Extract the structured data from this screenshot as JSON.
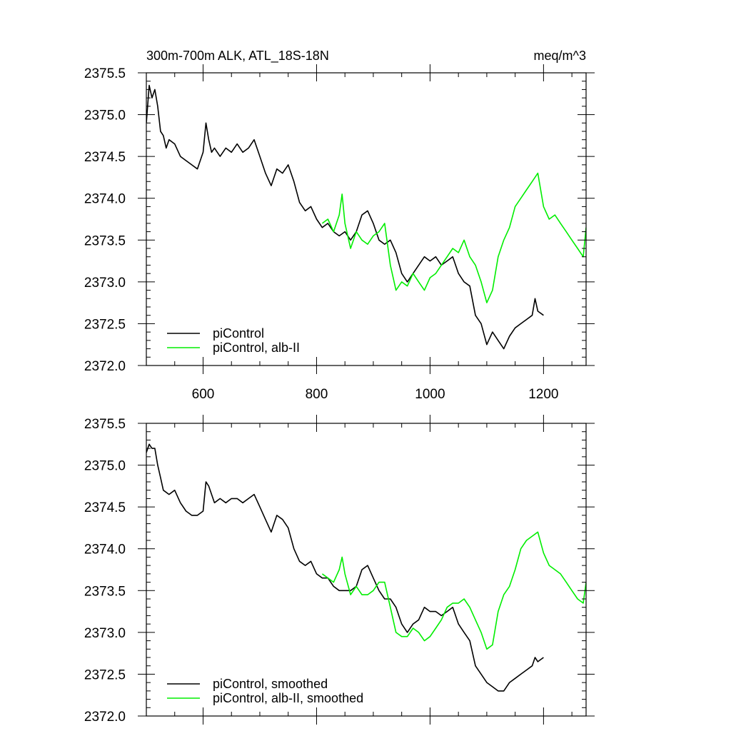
{
  "chart_data": [
    {
      "type": "line",
      "title": "300m-700m ALK, ATL_18S-18N",
      "units": "meq/m^3",
      "xlim": [
        500,
        1275
      ],
      "ylim": [
        2372.0,
        2375.5
      ],
      "x_ticks": [
        600,
        800,
        1000,
        1200
      ],
      "x_tick_labels": [
        "600",
        "800",
        "1000",
        "1200"
      ],
      "y_ticks": [
        2372.0,
        2372.5,
        2373.0,
        2373.5,
        2374.0,
        2374.5,
        2375.0,
        2375.5
      ],
      "y_tick_labels": [
        "2372.0",
        "2372.5",
        "2373.0",
        "2373.5",
        "2374.0",
        "2374.5",
        "2375.0",
        "2375.5"
      ],
      "grid": false,
      "legend_position": "bottom-left",
      "series": [
        {
          "name": "piControl",
          "color": "#000000",
          "x": [
            500,
            505,
            510,
            515,
            520,
            525,
            530,
            535,
            540,
            550,
            560,
            570,
            580,
            590,
            600,
            605,
            610,
            615,
            620,
            630,
            640,
            650,
            660,
            670,
            680,
            690,
            700,
            710,
            720,
            730,
            740,
            750,
            760,
            770,
            780,
            790,
            800,
            810,
            820,
            830,
            840,
            850,
            860,
            870,
            880,
            890,
            900,
            910,
            920,
            930,
            940,
            950,
            960,
            970,
            980,
            990,
            1000,
            1010,
            1020,
            1030,
            1040,
            1050,
            1060,
            1070,
            1080,
            1090,
            1100,
            1110,
            1120,
            1130,
            1140,
            1150,
            1160,
            1170,
            1180,
            1185,
            1190,
            1200
          ],
          "values": [
            2374.9,
            2375.35,
            2375.2,
            2375.3,
            2375.1,
            2374.8,
            2374.75,
            2374.6,
            2374.7,
            2374.65,
            2374.5,
            2374.45,
            2374.4,
            2374.35,
            2374.55,
            2374.9,
            2374.7,
            2374.55,
            2374.6,
            2374.5,
            2374.6,
            2374.55,
            2374.65,
            2374.55,
            2374.6,
            2374.7,
            2374.5,
            2374.3,
            2374.15,
            2374.35,
            2374.3,
            2374.4,
            2374.2,
            2373.95,
            2373.85,
            2373.9,
            2373.75,
            2373.65,
            2373.7,
            2373.6,
            2373.55,
            2373.6,
            2373.5,
            2373.6,
            2373.8,
            2373.85,
            2373.7,
            2373.5,
            2373.45,
            2373.5,
            2373.35,
            2373.1,
            2373.0,
            2373.1,
            2373.2,
            2373.3,
            2373.25,
            2373.3,
            2373.2,
            2373.25,
            2373.3,
            2373.1,
            2373.0,
            2372.95,
            2372.6,
            2372.5,
            2372.25,
            2372.4,
            2372.3,
            2372.2,
            2372.35,
            2372.45,
            2372.5,
            2372.55,
            2372.6,
            2372.8,
            2372.65,
            2372.6
          ]
        },
        {
          "name": "piControl, alb-II",
          "color": "#00ee00",
          "x": [
            810,
            820,
            830,
            840,
            845,
            850,
            860,
            870,
            880,
            890,
            900,
            910,
            920,
            930,
            940,
            950,
            960,
            970,
            980,
            990,
            1000,
            1010,
            1020,
            1030,
            1040,
            1050,
            1060,
            1070,
            1080,
            1090,
            1100,
            1110,
            1120,
            1130,
            1140,
            1150,
            1160,
            1170,
            1180,
            1190,
            1200,
            1210,
            1220,
            1230,
            1240,
            1250,
            1260,
            1270,
            1275
          ],
          "values": [
            2373.7,
            2373.75,
            2373.6,
            2373.8,
            2374.05,
            2373.7,
            2373.4,
            2373.6,
            2373.5,
            2373.45,
            2373.55,
            2373.6,
            2373.7,
            2373.2,
            2372.9,
            2373.0,
            2372.95,
            2373.1,
            2373.0,
            2372.9,
            2373.05,
            2373.1,
            2373.2,
            2373.3,
            2373.4,
            2373.35,
            2373.5,
            2373.3,
            2373.2,
            2373.0,
            2372.75,
            2372.9,
            2373.3,
            2373.5,
            2373.65,
            2373.9,
            2374.0,
            2374.1,
            2374.2,
            2374.3,
            2373.9,
            2373.75,
            2373.8,
            2373.7,
            2373.6,
            2373.5,
            2373.4,
            2373.3,
            2373.65
          ]
        }
      ]
    },
    {
      "type": "line",
      "xlim": [
        500,
        1275
      ],
      "ylim": [
        2372.0,
        2375.5
      ],
      "x_ticks": [
        600,
        800,
        1000,
        1200
      ],
      "y_ticks": [
        2372.0,
        2372.5,
        2373.0,
        2373.5,
        2374.0,
        2374.5,
        2375.0,
        2375.5
      ],
      "y_tick_labels": [
        "2372.0",
        "2372.5",
        "2373.0",
        "2373.5",
        "2374.0",
        "2374.5",
        "2375.0",
        "2375.5"
      ],
      "grid": false,
      "legend_position": "bottom-left",
      "series": [
        {
          "name": "piControl, smoothed",
          "color": "#000000",
          "x": [
            500,
            505,
            510,
            515,
            520,
            525,
            530,
            540,
            550,
            560,
            570,
            580,
            590,
            600,
            605,
            610,
            620,
            630,
            640,
            650,
            660,
            670,
            680,
            690,
            700,
            710,
            720,
            730,
            740,
            750,
            760,
            770,
            780,
            790,
            800,
            810,
            820,
            830,
            840,
            850,
            860,
            870,
            880,
            890,
            900,
            910,
            920,
            930,
            940,
            950,
            960,
            970,
            980,
            990,
            1000,
            1010,
            1020,
            1030,
            1040,
            1050,
            1060,
            1070,
            1080,
            1090,
            1100,
            1110,
            1120,
            1130,
            1140,
            1150,
            1160,
            1170,
            1180,
            1185,
            1190,
            1200
          ],
          "values": [
            2375.15,
            2375.25,
            2375.2,
            2375.2,
            2375.0,
            2374.85,
            2374.7,
            2374.65,
            2374.7,
            2374.55,
            2374.45,
            2374.4,
            2374.4,
            2374.45,
            2374.8,
            2374.75,
            2374.55,
            2374.6,
            2374.55,
            2374.6,
            2374.6,
            2374.55,
            2374.6,
            2374.65,
            2374.5,
            2374.35,
            2374.2,
            2374.4,
            2374.35,
            2374.25,
            2374.0,
            2373.85,
            2373.8,
            2373.85,
            2373.7,
            2373.65,
            2373.65,
            2373.55,
            2373.5,
            2373.5,
            2373.5,
            2373.55,
            2373.75,
            2373.8,
            2373.65,
            2373.5,
            2373.4,
            2373.4,
            2373.3,
            2373.1,
            2373.0,
            2373.1,
            2373.15,
            2373.3,
            2373.25,
            2373.25,
            2373.2,
            2373.25,
            2373.3,
            2373.1,
            2373.0,
            2372.9,
            2372.6,
            2372.5,
            2372.4,
            2372.35,
            2372.3,
            2372.3,
            2372.4,
            2372.45,
            2372.5,
            2372.55,
            2372.6,
            2372.7,
            2372.65,
            2372.7
          ]
        },
        {
          "name": "piControl, alb-II, smoothed",
          "color": "#00ee00",
          "x": [
            810,
            820,
            830,
            840,
            845,
            850,
            860,
            870,
            880,
            890,
            900,
            910,
            920,
            930,
            940,
            950,
            960,
            970,
            980,
            990,
            1000,
            1010,
            1020,
            1030,
            1040,
            1050,
            1060,
            1070,
            1080,
            1090,
            1100,
            1110,
            1120,
            1130,
            1140,
            1150,
            1160,
            1170,
            1180,
            1190,
            1200,
            1210,
            1220,
            1230,
            1240,
            1250,
            1260,
            1270,
            1275
          ],
          "values": [
            2373.7,
            2373.65,
            2373.6,
            2373.75,
            2373.9,
            2373.7,
            2373.45,
            2373.55,
            2373.45,
            2373.45,
            2373.5,
            2373.6,
            2373.6,
            2373.3,
            2373.0,
            2372.95,
            2372.95,
            2373.05,
            2373.0,
            2372.9,
            2372.95,
            2373.05,
            2373.15,
            2373.3,
            2373.35,
            2373.35,
            2373.4,
            2373.3,
            2373.15,
            2373.0,
            2372.8,
            2372.85,
            2373.25,
            2373.45,
            2373.55,
            2373.75,
            2374.0,
            2374.1,
            2374.15,
            2374.2,
            2373.95,
            2373.8,
            2373.75,
            2373.7,
            2373.6,
            2373.5,
            2373.4,
            2373.35,
            2373.6
          ]
        }
      ]
    }
  ]
}
